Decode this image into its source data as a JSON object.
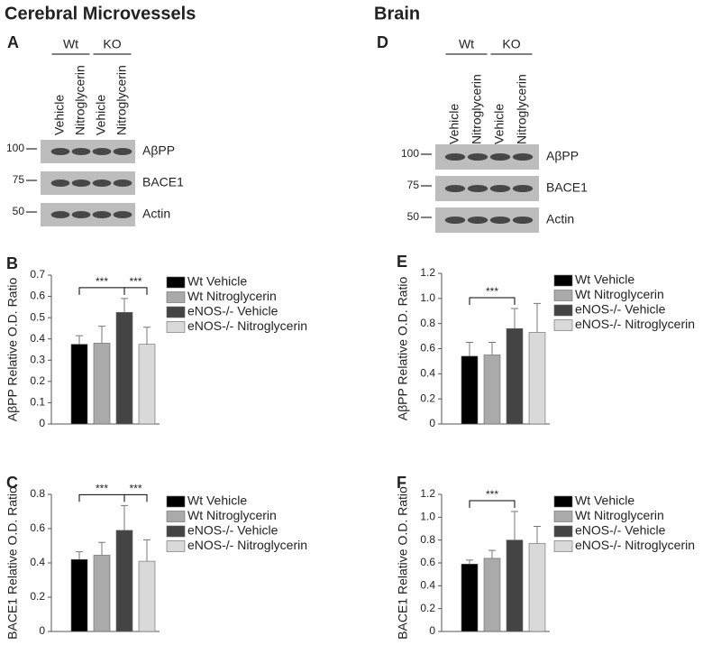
{
  "figure": {
    "columns": [
      {
        "heading": "Cerebral Microvessels",
        "panel": "A",
        "groups": [
          "Wt",
          "KO"
        ],
        "lanes": [
          "Vehicle",
          "Nitroglycerin",
          "Vehicle",
          "Nitroglycerin"
        ],
        "markers": [
          100,
          75,
          50
        ],
        "bands": [
          "AβPP",
          "BACE1",
          "Actin"
        ]
      },
      {
        "heading": "Brain",
        "panel": "D",
        "groups": [
          "Wt",
          "KO"
        ],
        "lanes": [
          "Vehicle",
          "Nitroglycerin",
          "Vehicle",
          "Nitroglycerin"
        ],
        "markers": [
          100,
          75,
          50
        ],
        "bands": [
          "AβPP",
          "BACE1",
          "Actin"
        ]
      }
    ]
  },
  "chart_data": [
    {
      "type": "bar",
      "panel": "B",
      "y_label": "AβPP Relative O.D. Ratio",
      "categories": [
        null
      ],
      "series": [
        {
          "name": "Wt Vehicle",
          "color": "#000000",
          "values": [
            0.375
          ],
          "errors": [
            0.04
          ]
        },
        {
          "name": "Wt Nitroglycerin",
          "color": "#aaaaaa",
          "values": [
            0.38
          ],
          "errors": [
            0.08
          ]
        },
        {
          "name": "eNOS-/- Vehicle",
          "color": "#444444",
          "values": [
            0.525
          ],
          "errors": [
            0.065
          ]
        },
        {
          "name": "eNOS-/- Nitroglycerin",
          "color": "#d9d9d9",
          "values": [
            0.375
          ],
          "errors": [
            0.08
          ]
        }
      ],
      "ylim": [
        0,
        0.7
      ],
      "yticks": [
        0,
        0.1,
        0.2,
        0.3,
        0.4,
        0.5,
        0.6,
        0.7
      ],
      "annotations": [
        "***",
        "***"
      ]
    },
    {
      "type": "bar",
      "panel": "C",
      "y_label": "BACE1 Relative O.D. Ratio",
      "categories": [
        null
      ],
      "series": [
        {
          "name": "Wt Vehicle",
          "color": "#000000",
          "values": [
            0.42
          ],
          "errors": [
            0.045
          ]
        },
        {
          "name": "Wt Nitroglycerin",
          "color": "#aaaaaa",
          "values": [
            0.445
          ],
          "errors": [
            0.075
          ]
        },
        {
          "name": "eNOS-/- Vehicle",
          "color": "#444444",
          "values": [
            0.59
          ],
          "errors": [
            0.145
          ]
        },
        {
          "name": "eNOS-/- Nitroglycerin",
          "color": "#d9d9d9",
          "values": [
            0.41
          ],
          "errors": [
            0.125
          ]
        }
      ],
      "ylim": [
        0,
        0.8
      ],
      "yticks": [
        0,
        0.2,
        0.4,
        0.6,
        0.8
      ],
      "annotations": [
        "***",
        "***"
      ]
    },
    {
      "type": "bar",
      "panel": "E",
      "y_label": "AβPP Relative O.D. Ratio",
      "categories": [
        null
      ],
      "series": [
        {
          "name": "Wt Vehicle",
          "color": "#000000",
          "values": [
            0.54
          ],
          "errors": [
            0.11
          ]
        },
        {
          "name": "Wt Nitroglycerin",
          "color": "#aaaaaa",
          "values": [
            0.55
          ],
          "errors": [
            0.1
          ]
        },
        {
          "name": "eNOS-/- Vehicle",
          "color": "#444444",
          "values": [
            0.76
          ],
          "errors": [
            0.16
          ]
        },
        {
          "name": "eNOS-/- Nitroglycerin",
          "color": "#d9d9d9",
          "values": [
            0.73
          ],
          "errors": [
            0.23
          ]
        }
      ],
      "ylim": [
        0,
        1.2
      ],
      "yticks": [
        0,
        0.2,
        0.4,
        0.6,
        0.8,
        {
          "value": 1,
          "label": "1.0"
        },
        1.2
      ],
      "annotations": [
        "***"
      ]
    },
    {
      "type": "bar",
      "panel": "F",
      "y_label": "BACE1 Relative O.D. Ratio",
      "categories": [
        null
      ],
      "series": [
        {
          "name": "Wt Vehicle",
          "color": "#000000",
          "values": [
            0.59
          ],
          "errors": [
            0.035
          ]
        },
        {
          "name": "Wt Nitroglycerin",
          "color": "#aaaaaa",
          "values": [
            0.64
          ],
          "errors": [
            0.07
          ]
        },
        {
          "name": "eNOS-/- Vehicle",
          "color": "#444444",
          "values": [
            0.8
          ],
          "errors": [
            0.25
          ]
        },
        {
          "name": "eNOS-/- Nitroglycerin",
          "color": "#d9d9d9",
          "values": [
            0.77
          ],
          "errors": [
            0.15
          ]
        }
      ],
      "ylim": [
        0,
        1.2
      ],
      "yticks": [
        0,
        0.2,
        0.4,
        0.6,
        0.8,
        {
          "value": 1,
          "label": "1.0"
        },
        1.2
      ],
      "annotations": [
        "***"
      ]
    }
  ]
}
